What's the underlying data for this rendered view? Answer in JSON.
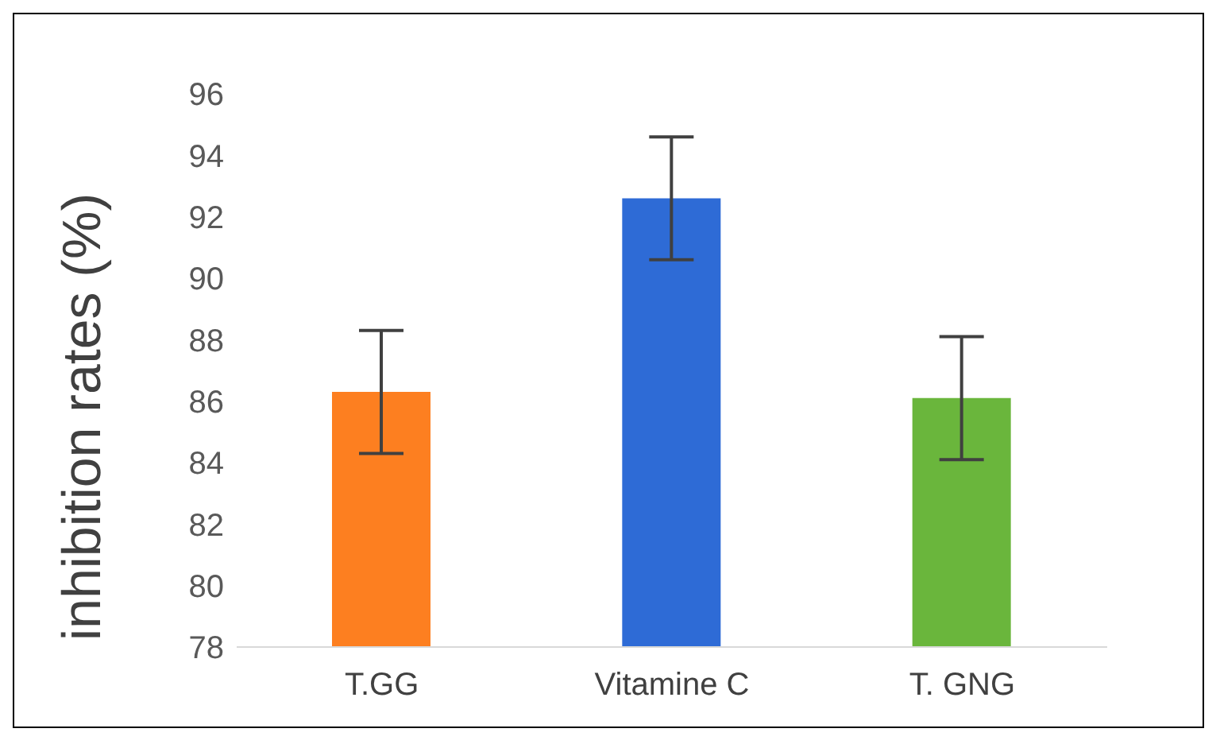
{
  "chart_data": {
    "type": "bar",
    "ylabel": "inhibition rates (%)",
    "categories": [
      "T.GG",
      "Vitamine C",
      "T. GNG"
    ],
    "values": [
      86.3,
      92.6,
      86.1
    ],
    "colors": [
      "#fd7f20",
      "#2e6bd6",
      "#6ab63c"
    ],
    "errors": [
      2,
      2,
      2
    ],
    "ylim": [
      78,
      96
    ],
    "yticks": [
      78,
      80,
      82,
      84,
      86,
      88,
      90,
      92,
      94,
      96
    ],
    "grid": false
  }
}
